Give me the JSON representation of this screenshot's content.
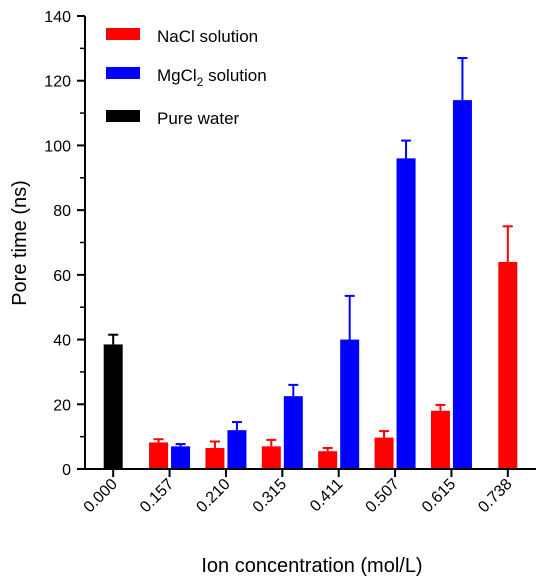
{
  "chart_data": {
    "type": "bar",
    "xlabel": "Ion concentration (mol/L)",
    "ylabel": "Pore time (ns)",
    "ylim": [
      0,
      140
    ],
    "yticks": [
      "0",
      "20",
      "40",
      "60",
      "80",
      "100",
      "120",
      "140"
    ],
    "categories": [
      "0.000",
      "0.157",
      "0.210",
      "0.315",
      "0.411",
      "0.507",
      "0.615",
      "0.738"
    ],
    "legend_position": "top-left",
    "grid": false,
    "series": [
      {
        "name": "NaCl solution",
        "color": "#ff0000",
        "values": [
          null,
          8.2,
          6.5,
          7.0,
          5.5,
          9.7,
          18.0,
          64.0
        ],
        "errors": [
          null,
          1.0,
          2.0,
          2.0,
          1.0,
          2.0,
          1.8,
          11.0
        ]
      },
      {
        "name": "MgCl",
        "name_subscript": "2",
        "name_suffix": " solution",
        "color": "#0000ff",
        "values": [
          null,
          7.0,
          12.0,
          22.5,
          40.0,
          96.0,
          114.0,
          null
        ],
        "errors": [
          null,
          0.7,
          2.5,
          3.5,
          13.5,
          5.5,
          13.0,
          null
        ]
      },
      {
        "name": "Pure water",
        "color": "#000000",
        "values": [
          38.5,
          null,
          null,
          null,
          null,
          null,
          null,
          null
        ],
        "errors": [
          3.0,
          null,
          null,
          null,
          null,
          null,
          null,
          null
        ]
      }
    ]
  }
}
